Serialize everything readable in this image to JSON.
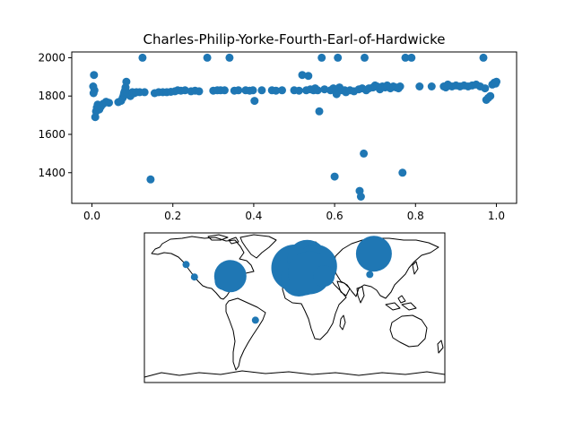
{
  "chart_data": [
    {
      "type": "scatter",
      "title": "Charles-Philip-Yorke-Fourth-Earl-of-Hardwicke",
      "xlim": [
        -0.05,
        1.05
      ],
      "ylim": [
        1240,
        2030
      ],
      "xticks": [
        0.0,
        0.2,
        0.4,
        0.6,
        0.8,
        1.0
      ],
      "xtick_labels": [
        "0.0",
        "0.2",
        "0.4",
        "0.6",
        "0.8",
        "1.0"
      ],
      "yticks": [
        1400,
        1600,
        1800,
        2000
      ],
      "ytick_labels": [
        "1400",
        "1600",
        "1800",
        "2000"
      ],
      "grid": false,
      "marker_color": "#1f77b4",
      "points": [
        [
          0.005,
          1910
        ],
        [
          0.003,
          1850
        ],
        [
          0.006,
          1830
        ],
        [
          0.004,
          1815
        ],
        [
          0.008,
          1690
        ],
        [
          0.01,
          1720
        ],
        [
          0.012,
          1740
        ],
        [
          0.014,
          1755
        ],
        [
          0.018,
          1730
        ],
        [
          0.022,
          1745
        ],
        [
          0.028,
          1760
        ],
        [
          0.035,
          1770
        ],
        [
          0.042,
          1765
        ],
        [
          0.065,
          1768
        ],
        [
          0.072,
          1775
        ],
        [
          0.076,
          1790
        ],
        [
          0.078,
          1800
        ],
        [
          0.079,
          1810
        ],
        [
          0.08,
          1820
        ],
        [
          0.082,
          1830
        ],
        [
          0.083,
          1845
        ],
        [
          0.085,
          1875
        ],
        [
          0.088,
          1815
        ],
        [
          0.095,
          1800
        ],
        [
          0.1,
          1820
        ],
        [
          0.105,
          1815
        ],
        [
          0.11,
          1820
        ],
        [
          0.118,
          1820
        ],
        [
          0.125,
          2000
        ],
        [
          0.13,
          1820
        ],
        [
          0.145,
          1365
        ],
        [
          0.155,
          1815
        ],
        [
          0.165,
          1820
        ],
        [
          0.175,
          1820
        ],
        [
          0.185,
          1820
        ],
        [
          0.195,
          1822
        ],
        [
          0.205,
          1825
        ],
        [
          0.212,
          1830
        ],
        [
          0.22,
          1828
        ],
        [
          0.23,
          1830
        ],
        [
          0.245,
          1825
        ],
        [
          0.255,
          1828
        ],
        [
          0.265,
          1825
        ],
        [
          0.285,
          2000
        ],
        [
          0.3,
          1828
        ],
        [
          0.31,
          1830
        ],
        [
          0.318,
          1830
        ],
        [
          0.328,
          1830
        ],
        [
          0.34,
          2000
        ],
        [
          0.352,
          1828
        ],
        [
          0.362,
          1830
        ],
        [
          0.38,
          1830
        ],
        [
          0.39,
          1828
        ],
        [
          0.398,
          1830
        ],
        [
          0.402,
          1775
        ],
        [
          0.42,
          1830
        ],
        [
          0.445,
          1830
        ],
        [
          0.455,
          1828
        ],
        [
          0.47,
          1830
        ],
        [
          0.5,
          1830
        ],
        [
          0.512,
          1828
        ],
        [
          0.52,
          1910
        ],
        [
          0.53,
          1830
        ],
        [
          0.535,
          1905
        ],
        [
          0.54,
          1835
        ],
        [
          0.548,
          1830
        ],
        [
          0.552,
          1840
        ],
        [
          0.558,
          1830
        ],
        [
          0.562,
          1720
        ],
        [
          0.568,
          2000
        ],
        [
          0.575,
          1835
        ],
        [
          0.59,
          1830
        ],
        [
          0.597,
          1840
        ],
        [
          0.6,
          1380
        ],
        [
          0.603,
          1830
        ],
        [
          0.605,
          1810
        ],
        [
          0.608,
          2000
        ],
        [
          0.612,
          1845
        ],
        [
          0.618,
          1830
        ],
        [
          0.625,
          1830
        ],
        [
          0.628,
          1820
        ],
        [
          0.638,
          1830
        ],
        [
          0.648,
          1825
        ],
        [
          0.66,
          1835
        ],
        [
          0.662,
          1305
        ],
        [
          0.665,
          1275
        ],
        [
          0.668,
          1840
        ],
        [
          0.672,
          1500
        ],
        [
          0.674,
          2000
        ],
        [
          0.678,
          1830
        ],
        [
          0.685,
          1840
        ],
        [
          0.695,
          1845
        ],
        [
          0.7,
          1855
        ],
        [
          0.705,
          1850
        ],
        [
          0.712,
          1835
        ],
        [
          0.718,
          1850
        ],
        [
          0.725,
          1845
        ],
        [
          0.73,
          1855
        ],
        [
          0.738,
          1840
        ],
        [
          0.745,
          1850
        ],
        [
          0.752,
          1845
        ],
        [
          0.758,
          1840
        ],
        [
          0.762,
          1850
        ],
        [
          0.768,
          1400
        ],
        [
          0.775,
          2000
        ],
        [
          0.79,
          2000
        ],
        [
          0.81,
          1850
        ],
        [
          0.84,
          1850
        ],
        [
          0.87,
          1850
        ],
        [
          0.875,
          1845
        ],
        [
          0.88,
          1860
        ],
        [
          0.89,
          1850
        ],
        [
          0.9,
          1855
        ],
        [
          0.91,
          1850
        ],
        [
          0.92,
          1855
        ],
        [
          0.93,
          1850
        ],
        [
          0.94,
          1855
        ],
        [
          0.95,
          1860
        ],
        [
          0.96,
          1850
        ],
        [
          0.968,
          2000
        ],
        [
          0.972,
          1840
        ],
        [
          0.975,
          1780
        ],
        [
          0.98,
          1790
        ],
        [
          0.985,
          1800
        ],
        [
          0.99,
          1860
        ],
        [
          0.995,
          1870
        ],
        [
          1.0,
          1875
        ],
        [
          0.998,
          1865
        ]
      ]
    },
    {
      "type": "scatter",
      "subtype": "bubble map",
      "xlim": [
        -180,
        180
      ],
      "ylim": [
        -90,
        90
      ],
      "marker_color": "#1f77b4",
      "points": [
        {
          "lon": -130,
          "lat": 52,
          "size": 4
        },
        {
          "lon": -120,
          "lat": 37,
          "size": 4
        },
        {
          "lon": -85,
          "lat": 32,
          "size": 10
        },
        {
          "lon": -77,
          "lat": 38,
          "size": 18
        },
        {
          "lon": -47,
          "lat": -15,
          "size": 4
        },
        {
          "lon": 0,
          "lat": 48,
          "size": 26
        },
        {
          "lon": 10,
          "lat": 45,
          "size": 28
        },
        {
          "lon": 15,
          "lat": 58,
          "size": 22
        },
        {
          "lon": 25,
          "lat": 50,
          "size": 24
        },
        {
          "lon": 5,
          "lat": 35,
          "size": 20
        },
        {
          "lon": 18,
          "lat": 42,
          "size": 24
        },
        {
          "lon": 35,
          "lat": 38,
          "size": 12
        },
        {
          "lon": 95,
          "lat": 65,
          "size": 20
        },
        {
          "lon": 90,
          "lat": 40,
          "size": 4
        }
      ]
    }
  ]
}
